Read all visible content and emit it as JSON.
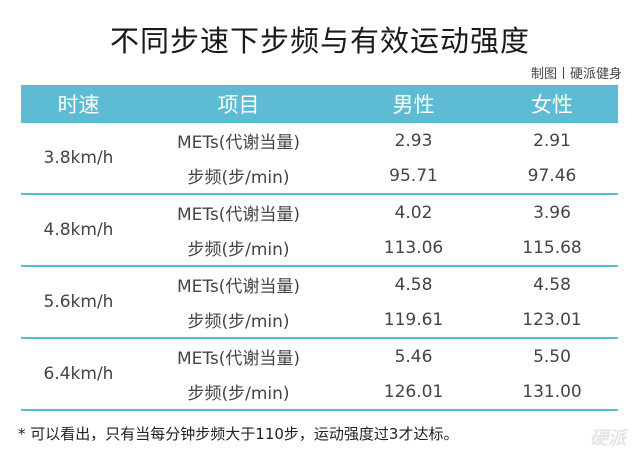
{
  "title": "不同步速下步频与有效运动强度",
  "credit": "制图丨硬派健身",
  "headers": [
    "时速",
    "项目",
    "男性",
    "女性"
  ],
  "groups": [
    {
      "speed": "3.8km/h",
      "rows": [
        {
          "item": "METs(代谢当量)",
          "male": "2.93",
          "female": "2.91"
        },
        {
          "item": "步频(步/min)",
          "male": "95.71",
          "female": "97.46"
        }
      ]
    },
    {
      "speed": "4.8km/h",
      "rows": [
        {
          "item": "METs(代谢当量)",
          "male": "4.02",
          "female": "3.96"
        },
        {
          "item": "步频(步/min)",
          "male": "113.06",
          "female": "115.68"
        }
      ]
    },
    {
      "speed": "5.6km/h",
      "rows": [
        {
          "item": "METs(代谢当量)",
          "male": "4.58",
          "female": "4.58"
        },
        {
          "item": "步频(步/min)",
          "male": "119.61",
          "female": "123.01"
        }
      ]
    },
    {
      "speed": "6.4km/h",
      "rows": [
        {
          "item": "METs(代谢当量)",
          "male": "5.46",
          "female": "5.50"
        },
        {
          "item": "步频(步/min)",
          "male": "126.01",
          "female": "131.00"
        }
      ]
    }
  ],
  "footnote": "* 可以看出，只有当每分钟步频大于110步，运动强度过3才达标。",
  "watermark": "硬派"
}
